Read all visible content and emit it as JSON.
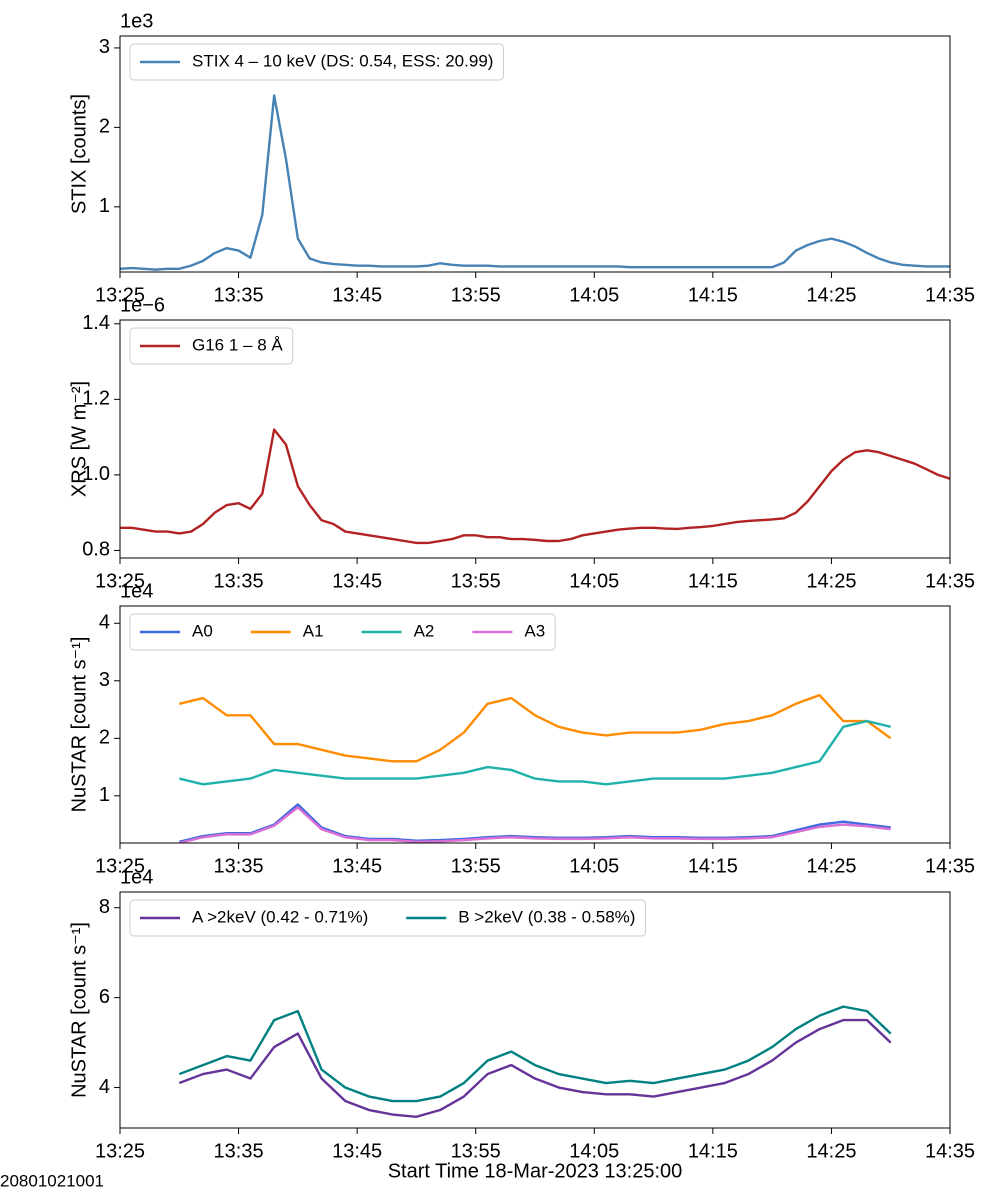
{
  "chart_data": [
    {
      "type": "line",
      "offset_text": "1e3",
      "ylabel": "STIX [counts]",
      "legend": "upper left",
      "xlim": [
        "13:25",
        "14:35"
      ],
      "xticks": [
        "13:25",
        "13:35",
        "13:45",
        "13:55",
        "14:05",
        "14:15",
        "14:25",
        "14:35"
      ],
      "ylim": [
        0.18,
        3.15
      ],
      "yticks": [
        1,
        2,
        3
      ],
      "x": [
        "13:25",
        "13:26",
        "13:27",
        "13:28",
        "13:29",
        "13:30",
        "13:31",
        "13:32",
        "13:33",
        "13:34",
        "13:35",
        "13:36",
        "13:37",
        "13:38",
        "13:39",
        "13:40",
        "13:41",
        "13:42",
        "13:43",
        "13:44",
        "13:45",
        "13:46",
        "13:47",
        "13:48",
        "13:49",
        "13:50",
        "13:51",
        "13:52",
        "13:53",
        "13:54",
        "13:55",
        "13:56",
        "13:57",
        "13:58",
        "13:59",
        "14:00",
        "14:01",
        "14:02",
        "14:03",
        "14:04",
        "14:05",
        "14:06",
        "14:07",
        "14:08",
        "14:09",
        "14:10",
        "14:11",
        "14:12",
        "14:13",
        "14:14",
        "14:15",
        "14:16",
        "14:17",
        "14:18",
        "14:19",
        "14:20",
        "14:21",
        "14:22",
        "14:23",
        "14:24",
        "14:25",
        "14:26",
        "14:27",
        "14:28",
        "14:29",
        "14:30",
        "14:31",
        "14:32",
        "14:33",
        "14:34",
        "14:35"
      ],
      "series": [
        {
          "name": "STIX 4 – 10 keV (DS: 0.54, ESS: 20.99)",
          "color": "#4682b4",
          "values": [
            0.22,
            0.23,
            0.22,
            0.21,
            0.22,
            0.22,
            0.26,
            0.32,
            0.42,
            0.48,
            0.45,
            0.36,
            0.9,
            2.4,
            1.6,
            0.6,
            0.35,
            0.3,
            0.28,
            0.27,
            0.26,
            0.26,
            0.25,
            0.25,
            0.25,
            0.25,
            0.26,
            0.29,
            0.27,
            0.26,
            0.26,
            0.26,
            0.25,
            0.25,
            0.25,
            0.25,
            0.25,
            0.25,
            0.25,
            0.25,
            0.25,
            0.25,
            0.25,
            0.24,
            0.24,
            0.24,
            0.24,
            0.24,
            0.24,
            0.24,
            0.24,
            0.24,
            0.24,
            0.24,
            0.24,
            0.24,
            0.3,
            0.45,
            0.52,
            0.57,
            0.6,
            0.56,
            0.5,
            0.42,
            0.35,
            0.3,
            0.27,
            0.26,
            0.25,
            0.25,
            0.25
          ]
        }
      ]
    },
    {
      "type": "line",
      "offset_text": "1e−6",
      "ylabel": "XRS [W m⁻²]",
      "legend": "upper left",
      "xlim": [
        "13:25",
        "14:35"
      ],
      "xticks": [
        "13:25",
        "13:35",
        "13:45",
        "13:55",
        "14:05",
        "14:15",
        "14:25",
        "14:35"
      ],
      "ylim": [
        0.78,
        1.41
      ],
      "yticks": [
        0.8,
        {
          "value": 1,
          "label": "1.0"
        },
        1.2,
        1.4
      ],
      "x": [
        "13:25",
        "13:26",
        "13:27",
        "13:28",
        "13:29",
        "13:30",
        "13:31",
        "13:32",
        "13:33",
        "13:34",
        "13:35",
        "13:36",
        "13:37",
        "13:38",
        "13:39",
        "13:40",
        "13:41",
        "13:42",
        "13:43",
        "13:44",
        "13:45",
        "13:46",
        "13:47",
        "13:48",
        "13:49",
        "13:50",
        "13:51",
        "13:52",
        "13:53",
        "13:54",
        "13:55",
        "13:56",
        "13:57",
        "13:58",
        "13:59",
        "14:00",
        "14:01",
        "14:02",
        "14:03",
        "14:04",
        "14:05",
        "14:06",
        "14:07",
        "14:08",
        "14:09",
        "14:10",
        "14:11",
        "14:12",
        "14:13",
        "14:14",
        "14:15",
        "14:16",
        "14:17",
        "14:18",
        "14:19",
        "14:20",
        "14:21",
        "14:22",
        "14:23",
        "14:24",
        "14:25",
        "14:26",
        "14:27",
        "14:28",
        "14:29",
        "14:30",
        "14:31",
        "14:32",
        "14:33",
        "14:34",
        "14:35"
      ],
      "series": [
        {
          "name": "G16 1 – 8 Å",
          "color": "#b22222",
          "values": [
            0.86,
            0.86,
            0.855,
            0.85,
            0.85,
            0.845,
            0.85,
            0.87,
            0.9,
            0.92,
            0.925,
            0.91,
            0.95,
            1.12,
            1.08,
            0.97,
            0.92,
            0.88,
            0.87,
            0.85,
            0.845,
            0.84,
            0.835,
            0.83,
            0.825,
            0.82,
            0.82,
            0.825,
            0.83,
            0.84,
            0.84,
            0.835,
            0.835,
            0.83,
            0.83,
            0.828,
            0.825,
            0.825,
            0.83,
            0.84,
            0.845,
            0.85,
            0.855,
            0.858,
            0.86,
            0.86,
            0.858,
            0.857,
            0.86,
            0.862,
            0.865,
            0.87,
            0.875,
            0.878,
            0.88,
            0.882,
            0.885,
            0.9,
            0.93,
            0.97,
            1.01,
            1.04,
            1.06,
            1.065,
            1.06,
            1.05,
            1.04,
            1.03,
            1.015,
            1.0,
            0.99
          ]
        }
      ]
    },
    {
      "type": "line",
      "offset_text": "1e4",
      "ylabel": "NuSTAR [count s⁻¹]",
      "legend": "upper left",
      "xlim": [
        "13:25",
        "14:35"
      ],
      "xticks": [
        "13:25",
        "13:35",
        "13:45",
        "13:55",
        "14:05",
        "14:15",
        "14:25",
        "14:35"
      ],
      "ylim": [
        0.18,
        4.3
      ],
      "yticks": [
        1,
        2,
        3,
        4
      ],
      "x": [
        "13:30",
        "13:32",
        "13:34",
        "13:36",
        "13:38",
        "13:40",
        "13:42",
        "13:44",
        "13:46",
        "13:48",
        "13:50",
        "13:52",
        "13:54",
        "13:56",
        "13:58",
        "14:00",
        "14:02",
        "14:04",
        "14:06",
        "14:08",
        "14:10",
        "14:12",
        "14:14",
        "14:16",
        "14:18",
        "14:20",
        "14:22",
        "14:24",
        "14:26",
        "14:28",
        "14:30"
      ],
      "series": [
        {
          "name": "A0",
          "color": "#4169e1",
          "values": [
            0.2,
            0.3,
            0.35,
            0.35,
            0.5,
            0.85,
            0.45,
            0.3,
            0.25,
            0.25,
            0.22,
            0.23,
            0.25,
            0.28,
            0.3,
            0.28,
            0.27,
            0.27,
            0.28,
            0.3,
            0.28,
            0.28,
            0.27,
            0.27,
            0.28,
            0.3,
            0.4,
            0.5,
            0.55,
            0.5,
            0.45
          ]
        },
        {
          "name": "A1",
          "color": "#ff8c00",
          "values": [
            2.6,
            2.7,
            2.4,
            2.4,
            1.9,
            1.9,
            1.8,
            1.7,
            1.65,
            1.6,
            1.6,
            1.8,
            2.1,
            2.6,
            2.7,
            2.4,
            2.2,
            2.1,
            2.05,
            2.1,
            2.1,
            2.1,
            2.15,
            2.25,
            2.3,
            2.4,
            2.6,
            2.75,
            2.3,
            2.3,
            2.0
          ]
        },
        {
          "name": "A2",
          "color": "#20b2aa",
          "values": [
            1.3,
            1.2,
            1.25,
            1.3,
            1.45,
            1.4,
            1.35,
            1.3,
            1.3,
            1.3,
            1.3,
            1.35,
            1.4,
            1.5,
            1.45,
            1.3,
            1.25,
            1.25,
            1.2,
            1.25,
            1.3,
            1.3,
            1.3,
            1.3,
            1.35,
            1.4,
            1.5,
            1.6,
            2.2,
            2.3,
            2.2
          ]
        },
        {
          "name": "A3",
          "color": "#da70d6",
          "values": [
            0.18,
            0.28,
            0.33,
            0.33,
            0.48,
            0.8,
            0.42,
            0.28,
            0.23,
            0.23,
            0.2,
            0.21,
            0.23,
            0.26,
            0.28,
            0.26,
            0.25,
            0.25,
            0.26,
            0.28,
            0.26,
            0.26,
            0.25,
            0.25,
            0.26,
            0.28,
            0.37,
            0.46,
            0.5,
            0.47,
            0.42
          ]
        }
      ]
    },
    {
      "type": "line",
      "offset_text": "1e4",
      "ylabel": "NuSTAR [count s⁻¹]",
      "xlabel": "Start Time 18-Mar-2023 13:25:00",
      "legend": "upper left",
      "xlim": [
        "13:25",
        "14:35"
      ],
      "xticks": [
        "13:25",
        "13:35",
        "13:45",
        "13:55",
        "14:05",
        "14:15",
        "14:25",
        "14:35"
      ],
      "ylim": [
        3.1,
        8.35
      ],
      "yticks": [
        4,
        6,
        8
      ],
      "x": [
        "13:30",
        "13:32",
        "13:34",
        "13:36",
        "13:38",
        "13:40",
        "13:42",
        "13:44",
        "13:46",
        "13:48",
        "13:50",
        "13:52",
        "13:54",
        "13:56",
        "13:58",
        "14:00",
        "14:02",
        "14:04",
        "14:06",
        "14:08",
        "14:10",
        "14:12",
        "14:14",
        "14:16",
        "14:18",
        "14:20",
        "14:22",
        "14:24",
        "14:26",
        "14:28",
        "14:30"
      ],
      "series": [
        {
          "name": "A >2keV (0.42 - 0.71%)",
          "color": "#663399",
          "values": [
            4.1,
            4.3,
            4.4,
            4.2,
            4.9,
            5.2,
            4.2,
            3.7,
            3.5,
            3.4,
            3.35,
            3.5,
            3.8,
            4.3,
            4.5,
            4.2,
            4.0,
            3.9,
            3.85,
            3.85,
            3.8,
            3.9,
            4.0,
            4.1,
            4.3,
            4.6,
            5.0,
            5.3,
            5.5,
            5.5,
            5.0
          ]
        },
        {
          "name": "B >2keV (0.38 - 0.58%)",
          "color": "#008080",
          "values": [
            4.3,
            4.5,
            4.7,
            4.6,
            5.5,
            5.7,
            4.4,
            4.0,
            3.8,
            3.7,
            3.7,
            3.8,
            4.1,
            4.6,
            4.8,
            4.5,
            4.3,
            4.2,
            4.1,
            4.15,
            4.1,
            4.2,
            4.3,
            4.4,
            4.6,
            4.9,
            5.3,
            5.6,
            5.8,
            5.7,
            5.2
          ]
        }
      ]
    }
  ],
  "footnote": "20801021001"
}
